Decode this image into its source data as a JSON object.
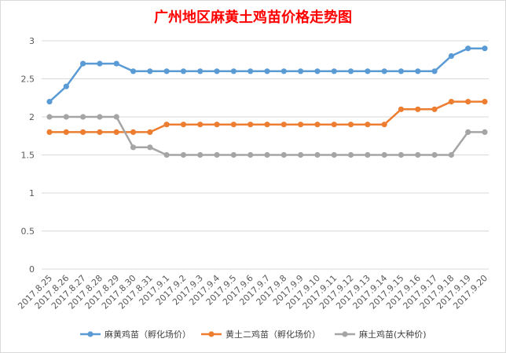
{
  "chart_data": {
    "type": "line",
    "title": "广州地区麻黄土鸡苗价格走势图",
    "xlabel": "",
    "ylabel": "",
    "ylim": [
      0,
      3
    ],
    "yticks": [
      "0",
      "0.5",
      "1",
      "1.5",
      "2",
      "2.5",
      "3"
    ],
    "grid": true,
    "legend_position": "bottom",
    "categories": [
      "2017.8.25",
      "2017.8.26",
      "2017.8.27",
      "2017.8.28",
      "2017.8.29",
      "2017.8.30",
      "2017.8.31",
      "2017.9.1",
      "2017.9.2",
      "2017.9.3",
      "2017.9.4",
      "2017.9.5",
      "2017.9.6",
      "2017.9.7",
      "2017.9.8",
      "2017.9.9",
      "2017.9.10",
      "2017.9.11",
      "2017.9.12",
      "2017.9.13",
      "2017.9.14",
      "2017.9.15",
      "2017.9.16",
      "2017.9.17",
      "2017.9.18",
      "2017.9.19",
      "2017.9.20"
    ],
    "series": [
      {
        "name": "麻黄鸡苗（孵化场价）",
        "color": "#5b9bd5",
        "values": [
          2.2,
          2.4,
          2.7,
          2.7,
          2.7,
          2.6,
          2.6,
          2.6,
          2.6,
          2.6,
          2.6,
          2.6,
          2.6,
          2.6,
          2.6,
          2.6,
          2.6,
          2.6,
          2.6,
          2.6,
          2.6,
          2.6,
          2.6,
          2.6,
          2.8,
          2.9,
          2.9
        ]
      },
      {
        "name": "黄土二鸡苗（孵化场价）",
        "color": "#ed7d31",
        "values": [
          1.8,
          1.8,
          1.8,
          1.8,
          1.8,
          1.8,
          1.8,
          1.9,
          1.9,
          1.9,
          1.9,
          1.9,
          1.9,
          1.9,
          1.9,
          1.9,
          1.9,
          1.9,
          1.9,
          1.9,
          1.9,
          2.1,
          2.1,
          2.1,
          2.2,
          2.2,
          2.2
        ]
      },
      {
        "name": "麻土鸡苗(大种价)",
        "color": "#a5a5a5",
        "values": [
          2.0,
          2.0,
          2.0,
          2.0,
          2.0,
          1.6,
          1.6,
          1.5,
          1.5,
          1.5,
          1.5,
          1.5,
          1.5,
          1.5,
          1.5,
          1.5,
          1.5,
          1.5,
          1.5,
          1.5,
          1.5,
          1.5,
          1.5,
          1.5,
          1.5,
          1.8,
          1.8
        ]
      }
    ]
  }
}
